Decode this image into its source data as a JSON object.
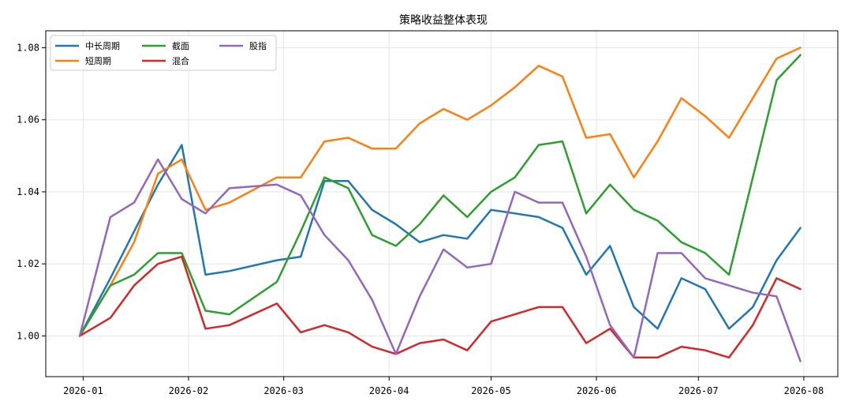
{
  "chart_data": {
    "type": "line",
    "title": "策略收益整体表现",
    "xlabel": "",
    "ylabel": "",
    "x_tick_labels": [
      "2026-01",
      "2026-02",
      "2026-03",
      "2026-04",
      "2026-05",
      "2026-06",
      "2026-07",
      "2026-08"
    ],
    "y_tick_labels": [
      "1.00",
      "1.02",
      "1.04",
      "1.06",
      "1.08"
    ],
    "ylim": [
      0.9887,
      1.0847
    ],
    "xlim": [
      "2025-12-21",
      "2026-08-11"
    ],
    "grid": true,
    "legend_position": "top-left",
    "dates": [
      "2025-12-31",
      "2026-01-09",
      "2026-01-16",
      "2026-01-23",
      "2026-01-30",
      "2026-02-06",
      "2026-02-13",
      "2026-02-27",
      "2026-03-06",
      "2026-03-13",
      "2026-03-20",
      "2026-03-27",
      "2026-04-03",
      "2026-04-10",
      "2026-04-17",
      "2026-04-24",
      "2026-05-01",
      "2026-05-08",
      "2026-05-15",
      "2026-05-22",
      "2026-05-29",
      "2026-06-05",
      "2026-06-12",
      "2026-06-19",
      "2026-06-26",
      "2026-07-03",
      "2026-07-10",
      "2026-07-17",
      "2026-07-24",
      "2026-07-31"
    ],
    "series": [
      {
        "name": "中长周期",
        "color": "#1f77b4",
        "values": [
          1.0,
          1.016,
          1.029,
          1.042,
          1.053,
          1.017,
          1.018,
          1.021,
          1.022,
          1.043,
          1.043,
          1.035,
          1.031,
          1.026,
          1.028,
          1.027,
          1.035,
          1.034,
          1.033,
          1.03,
          1.017,
          1.025,
          1.008,
          1.002,
          1.016,
          1.013,
          1.002,
          1.008,
          1.021,
          1.03
        ]
      },
      {
        "name": "短周期",
        "color": "#ff7f0e",
        "values": [
          1.0,
          1.014,
          1.026,
          1.045,
          1.049,
          1.035,
          1.037,
          1.044,
          1.044,
          1.054,
          1.055,
          1.052,
          1.052,
          1.059,
          1.063,
          1.06,
          1.064,
          1.069,
          1.075,
          1.072,
          1.055,
          1.056,
          1.044,
          1.054,
          1.066,
          1.061,
          1.055,
          1.066,
          1.077,
          1.08
        ]
      },
      {
        "name": "截面",
        "color": "#2ca02c",
        "values": [
          1.0,
          1.014,
          1.017,
          1.023,
          1.023,
          1.007,
          1.006,
          1.015,
          1.029,
          1.044,
          1.041,
          1.028,
          1.025,
          1.031,
          1.039,
          1.033,
          1.04,
          1.044,
          1.053,
          1.054,
          1.034,
          1.042,
          1.035,
          1.032,
          1.026,
          1.023,
          1.017,
          1.044,
          1.071,
          1.078
        ]
      },
      {
        "name": "混合",
        "color": "#d62728",
        "values": [
          1.0,
          1.005,
          1.014,
          1.02,
          1.022,
          1.002,
          1.003,
          1.009,
          1.001,
          1.003,
          1.001,
          0.997,
          0.995,
          0.998,
          0.999,
          0.996,
          1.004,
          1.006,
          1.008,
          1.008,
          0.998,
          1.002,
          0.994,
          0.994,
          0.997,
          0.996,
          0.994,
          1.003,
          1.016,
          1.013
        ]
      },
      {
        "name": "股指",
        "color": "#9467bd",
        "values": [
          1.0,
          1.033,
          1.037,
          1.049,
          1.038,
          1.034,
          1.041,
          1.042,
          1.039,
          1.028,
          1.021,
          1.01,
          0.995,
          1.011,
          1.024,
          1.019,
          1.02,
          1.04,
          1.037,
          1.037,
          1.022,
          1.003,
          0.994,
          1.023,
          1.023,
          1.016,
          1.014,
          1.012,
          1.011,
          0.993
        ]
      }
    ]
  }
}
